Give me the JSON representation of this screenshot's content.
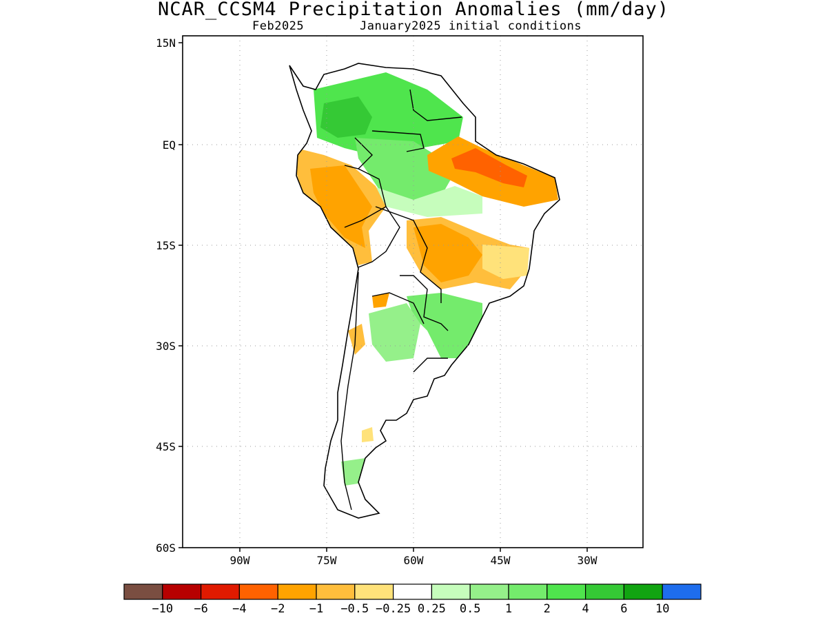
{
  "header": {
    "title": "NCAR_CCSM4 Precipitation Anomalies (mm/day)",
    "forecast_month": "Feb2025",
    "init_conditions": "January2025 initial conditions"
  },
  "map": {
    "region": "South America",
    "lat_labels": [
      "15N",
      "EQ",
      "15S",
      "30S",
      "45S",
      "60S"
    ],
    "lon_labels": [
      "90W",
      "75W",
      "60W",
      "45W",
      "30W"
    ],
    "grid": true
  },
  "colorbar": {
    "labels": [
      "-10",
      "-6",
      "-4",
      "-2",
      "-1",
      "-0.5",
      "-0.25",
      "0.25",
      "0.5",
      "1",
      "2",
      "4",
      "6",
      "10"
    ],
    "colors": [
      "#7a4e41",
      "#b70000",
      "#e01a00",
      "#ff6200",
      "#ffa300",
      "#ffbe3c",
      "#ffe27a",
      "#ffffff",
      "#c6fdbc",
      "#95f08a",
      "#74eb6c",
      "#4fe54d",
      "#35c935",
      "#11a411",
      "#1e6ded"
    ]
  }
}
